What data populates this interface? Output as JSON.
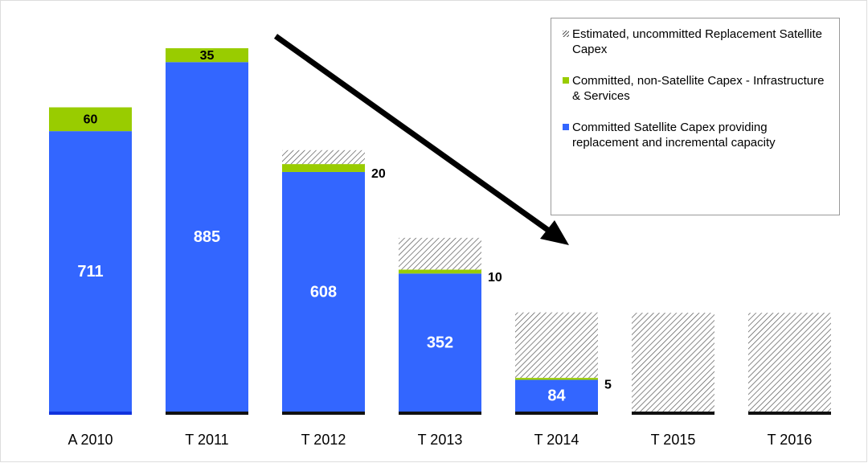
{
  "chart_data": {
    "type": "stacked_bar",
    "categories": [
      "A 2010",
      "T 2011",
      "T 2012",
      "T 2013",
      "T 2014",
      "T 2015",
      "T 2016"
    ],
    "series": [
      {
        "name": "Committed Satellite Capex providing replacement and incremental capacity",
        "color": "#3366ff",
        "values": [
          711,
          885,
          608,
          352,
          84,
          null,
          null
        ]
      },
      {
        "name": "Committed, non-Satellite Capex - Infrastructure & Services",
        "color": "#99cc00",
        "values": [
          60,
          35,
          20,
          10,
          5,
          null,
          null
        ]
      },
      {
        "name": "Estimated, uncommitted Replacement Satellite Capex",
        "color": "hatch",
        "values": [
          null,
          null,
          35,
          80,
          165,
          253,
          253
        ]
      }
    ],
    "legend": "top-right"
  }
}
